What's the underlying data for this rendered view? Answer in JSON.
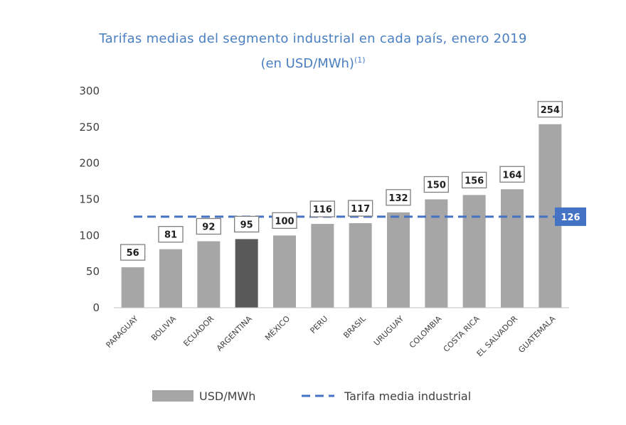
{
  "chart_data": {
    "type": "bar",
    "title": "Tarifas medias del segmento industrial en cada país, enero 2019",
    "subtitle": "(en USD/MWh)",
    "subtitle_sup": "(1)",
    "categories": [
      "PARAGUAY",
      "BOLIVIA",
      "ECUADOR",
      "ARGENTINA",
      "MÉXICO",
      "PERU",
      "BRASIL",
      "URUGUAY",
      "COLOMBIA",
      "COSTA RICA",
      "EL SALVADOR",
      "GUATEMALA"
    ],
    "series": [
      {
        "name": "USD/MWh",
        "values": [
          56,
          81,
          92,
          95,
          100,
          116,
          117,
          132,
          150,
          156,
          164,
          254
        ],
        "color": "#a6a6a6",
        "highlight_index": 3,
        "highlight_color": "#595959"
      }
    ],
    "reference_line": {
      "name": "Tarifa media industrial",
      "value": 126,
      "label": "126",
      "color": "#4472c4",
      "style": "dashed"
    },
    "yticks": [
      "0",
      "50",
      "100",
      "150",
      "200",
      "250",
      "300"
    ],
    "ylim": [
      0,
      300
    ],
    "grid": false,
    "legend_position": "bottom"
  }
}
